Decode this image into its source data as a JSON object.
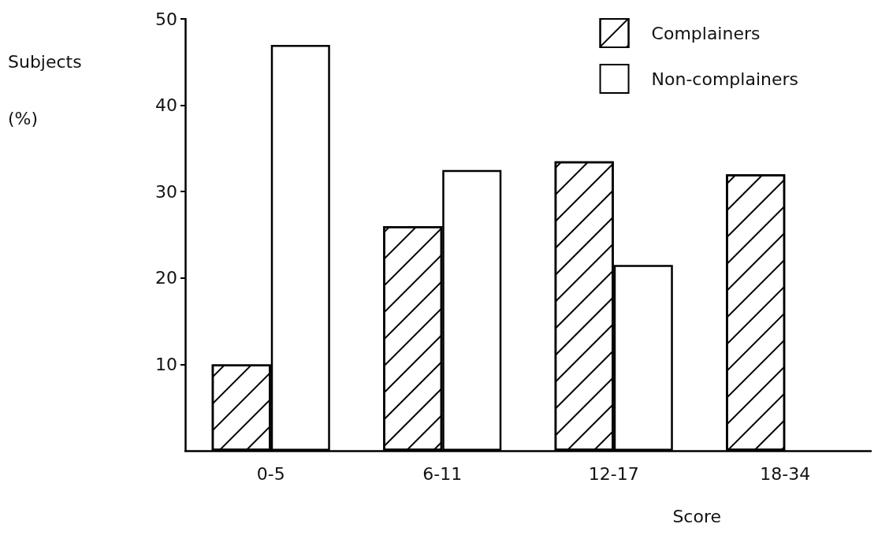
{
  "chart_data": {
    "type": "bar",
    "xlabel": "Score",
    "ylabel": "Subjects (%)",
    "categories": [
      "0-5",
      "6-11",
      "12-17",
      "18-34"
    ],
    "series": [
      {
        "name": "Complainers",
        "color": "#ffffff",
        "values": [
          10,
          26,
          33.5,
          32
        ]
      },
      {
        "name": "Non-complainers",
        "color": "#ffffff",
        "values": [
          47,
          32.5,
          21.5,
          null
        ]
      }
    ],
    "ylim": [
      0,
      50
    ],
    "yticks": [
      10,
      20,
      30,
      40,
      50
    ],
    "grid": false,
    "legend": "top right"
  }
}
